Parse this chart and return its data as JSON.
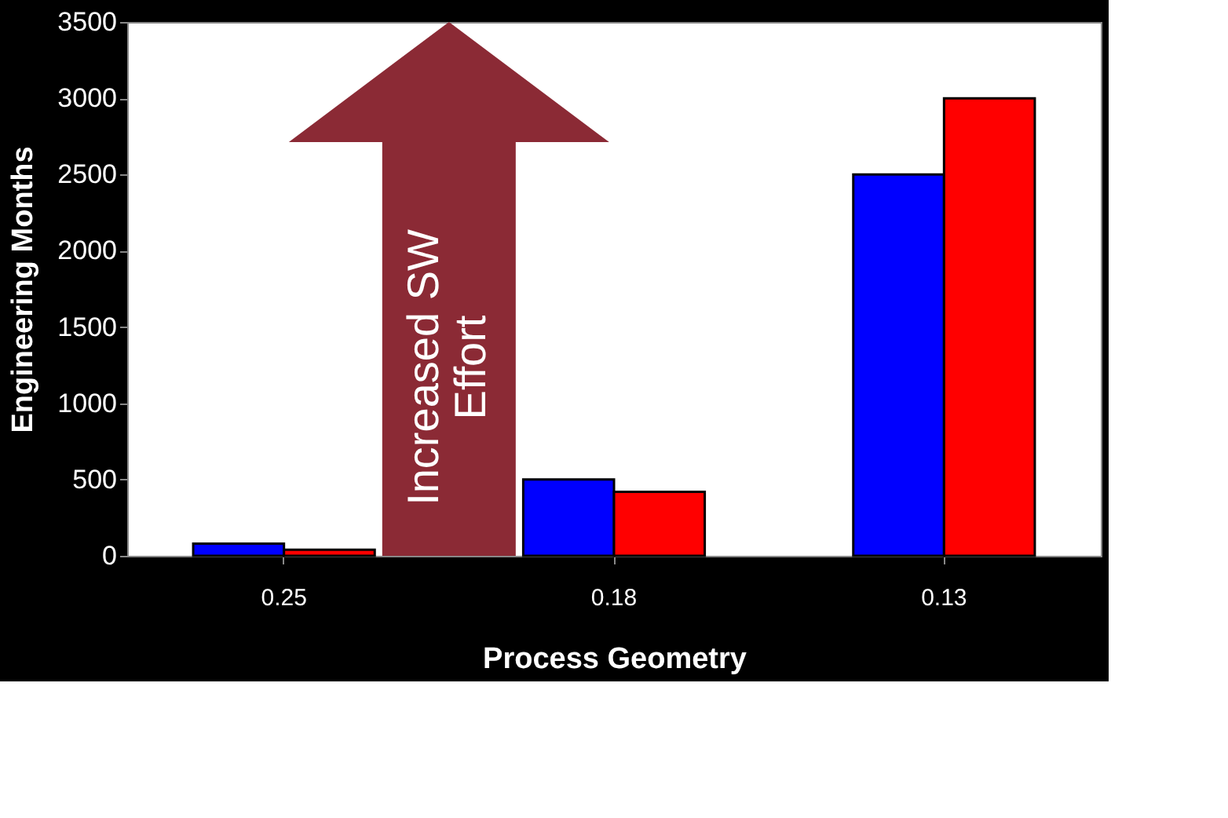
{
  "chart_data": {
    "type": "bar",
    "xlabel": "Process Geometry",
    "ylabel": "Engineering Months",
    "categories": [
      "0.25",
      "0.18",
      "0.13"
    ],
    "series": [
      {
        "color": "#0000ff",
        "values": [
          80,
          500,
          2500
        ]
      },
      {
        "color": "#ff0000",
        "values": [
          40,
          420,
          3000
        ]
      }
    ],
    "ylim": [
      0,
      3500
    ],
    "yticks": [
      0,
      500,
      1000,
      1500,
      2000,
      2500,
      3000,
      3500
    ],
    "grid": false,
    "legend": false,
    "annotations": [
      "Increased SW Effort"
    ]
  }
}
